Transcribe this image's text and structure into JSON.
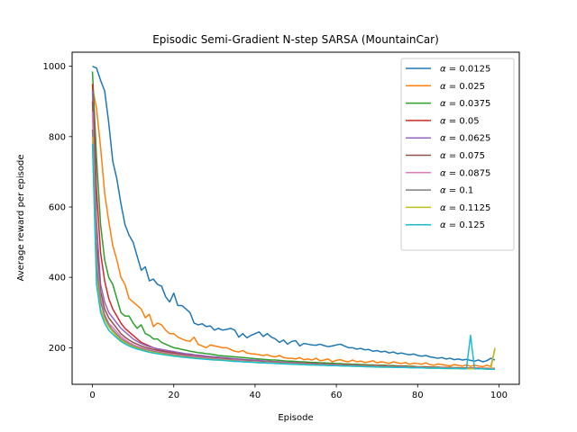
{
  "chart_data": {
    "type": "line",
    "title": "Episodic Semi-Gradient N-step SARSA (MountainCar)",
    "xlabel": "Episode",
    "ylabel": "Average reward per episode",
    "xlim": [
      -5,
      105
    ],
    "ylim": [
      96,
      1040
    ],
    "xticks": [
      0,
      20,
      40,
      60,
      80,
      100
    ],
    "yticks": [
      200,
      400,
      600,
      800,
      1000
    ],
    "grid": false,
    "legend_position": "upper right",
    "x": [
      0,
      1,
      2,
      3,
      4,
      5,
      6,
      7,
      8,
      9,
      10,
      11,
      12,
      13,
      14,
      15,
      16,
      17,
      18,
      19,
      20,
      21,
      22,
      23,
      24,
      25,
      26,
      27,
      28,
      29,
      30,
      31,
      32,
      33,
      34,
      35,
      36,
      37,
      38,
      39,
      40,
      41,
      42,
      43,
      44,
      45,
      46,
      47,
      48,
      49,
      50,
      51,
      52,
      53,
      54,
      55,
      56,
      57,
      58,
      59,
      60,
      61,
      62,
      63,
      64,
      65,
      66,
      67,
      68,
      69,
      70,
      71,
      72,
      73,
      74,
      75,
      76,
      77,
      78,
      79,
      80,
      81,
      82,
      83,
      84,
      85,
      86,
      87,
      88,
      89,
      90,
      91,
      92,
      93,
      94,
      95,
      96,
      97,
      98,
      99
    ],
    "series": [
      {
        "name": "α = 0.0125",
        "symbol": "α",
        "value": "0.0125",
        "color": "#1f77b4",
        "values": [
          1000,
          995,
          960,
          930,
          840,
          730,
          680,
          610,
          550,
          520,
          500,
          460,
          420,
          430,
          390,
          395,
          380,
          375,
          345,
          330,
          355,
          320,
          320,
          310,
          300,
          270,
          265,
          268,
          260,
          262,
          250,
          255,
          250,
          252,
          255,
          250,
          230,
          240,
          228,
          235,
          240,
          245,
          232,
          240,
          230,
          225,
          215,
          222,
          210,
          218,
          220,
          205,
          212,
          210,
          208,
          207,
          210,
          206,
          203,
          205,
          208,
          210,
          205,
          200,
          200,
          196,
          198,
          194,
          195,
          190,
          192,
          188,
          190,
          185,
          188,
          183,
          185,
          182,
          180,
          182,
          178,
          176,
          178,
          174,
          172,
          170,
          172,
          168,
          170,
          166,
          168,
          165,
          167,
          164,
          162,
          165,
          160,
          163,
          170,
          165
        ]
      },
      {
        "name": "α = 0.025",
        "symbol": "α",
        "value": "0.025",
        "color": "#ff7f0e",
        "values": [
          940,
          880,
          770,
          640,
          560,
          490,
          450,
          400,
          380,
          340,
          330,
          320,
          310,
          285,
          295,
          260,
          270,
          265,
          250,
          240,
          240,
          230,
          225,
          220,
          218,
          230,
          210,
          205,
          200,
          208,
          205,
          203,
          200,
          200,
          195,
          190,
          188,
          192,
          185,
          183,
          182,
          180,
          178,
          180,
          176,
          174,
          178,
          172,
          170,
          170,
          168,
          172,
          166,
          168,
          165,
          170,
          163,
          165,
          168,
          160,
          164,
          166,
          162,
          160,
          165,
          160,
          162,
          158,
          160,
          163,
          157,
          160,
          158,
          155,
          160,
          157,
          155,
          158,
          153,
          156,
          155,
          153,
          157,
          152,
          150,
          154,
          152,
          150,
          148,
          152,
          150,
          148,
          151,
          147,
          150,
          148,
          146,
          150,
          147,
          196
        ]
      },
      {
        "name": "α = 0.0375",
        "symbol": "α",
        "value": "0.0375",
        "color": "#2ca02c",
        "values": [
          985,
          740,
          550,
          450,
          400,
          380,
          340,
          300,
          290,
          290,
          270,
          255,
          265,
          240,
          235,
          225,
          225,
          215,
          210,
          205,
          200,
          198,
          195,
          193,
          190,
          188,
          186,
          185,
          183,
          182,
          180,
          178,
          177,
          176,
          175,
          174,
          173,
          172,
          171,
          170,
          169,
          168,
          167,
          166,
          165,
          165,
          164,
          163,
          162,
          162,
          161,
          160,
          160,
          159,
          158,
          158,
          157,
          157,
          156,
          156,
          155,
          155,
          154,
          154,
          153,
          153,
          152,
          152,
          151,
          151,
          150,
          150,
          150,
          149,
          149,
          148,
          148,
          148,
          147,
          147,
          146,
          146,
          146,
          145,
          145,
          145,
          144,
          144,
          144,
          143,
          143,
          143,
          142,
          142,
          142,
          141,
          141,
          141,
          140,
          140
        ]
      },
      {
        "name": "α = 0.05",
        "symbol": "α",
        "value": "0.05",
        "color": "#d62728",
        "values": [
          950,
          650,
          470,
          390,
          340,
          310,
          290,
          270,
          255,
          245,
          235,
          225,
          215,
          210,
          205,
          200,
          195,
          192,
          190,
          188,
          186,
          184,
          182,
          180,
          179,
          178,
          177,
          176,
          175,
          174,
          173,
          172,
          171,
          170,
          169,
          168,
          167,
          166,
          165,
          165,
          164,
          163,
          162,
          162,
          161,
          160,
          160,
          159,
          158,
          158,
          157,
          157,
          156,
          156,
          155,
          155,
          154,
          154,
          153,
          153,
          152,
          152,
          152,
          151,
          151,
          150,
          150,
          150,
          149,
          149,
          149,
          148,
          148,
          148,
          147,
          147,
          147,
          146,
          146,
          146,
          145,
          145,
          145,
          145,
          144,
          144,
          144,
          144,
          143,
          143,
          143,
          143,
          142,
          142,
          142,
          142,
          141,
          141,
          141,
          141
        ]
      },
      {
        "name": "α = 0.0625",
        "symbol": "α",
        "value": "0.0625",
        "color": "#9467bd",
        "values": [
          930,
          560,
          380,
          330,
          300,
          285,
          270,
          255,
          245,
          235,
          225,
          218,
          212,
          207,
          203,
          200,
          197,
          195,
          193,
          191,
          189,
          187,
          185,
          183,
          182,
          180,
          179,
          178,
          176,
          175,
          174,
          173,
          172,
          171,
          170,
          169,
          168,
          167,
          166,
          165,
          165,
          164,
          163,
          162,
          161,
          160,
          160,
          159,
          158,
          158,
          157,
          156,
          156,
          155,
          155,
          154,
          154,
          153,
          153,
          152,
          152,
          151,
          151,
          150,
          150,
          150,
          149,
          149,
          148,
          148,
          148,
          147,
          147,
          147,
          146,
          146,
          146,
          145,
          145,
          145,
          145,
          144,
          144,
          144,
          143,
          143,
          143,
          143,
          142,
          142,
          142,
          142,
          141,
          141,
          141,
          141,
          140,
          140,
          140,
          140
        ]
      },
      {
        "name": "α = 0.075",
        "symbol": "α",
        "value": "0.075",
        "color": "#8c564b",
        "values": [
          900,
          500,
          360,
          310,
          285,
          270,
          255,
          240,
          230,
          222,
          215,
          210,
          205,
          201,
          198,
          195,
          192,
          190,
          188,
          186,
          184,
          182,
          181,
          179,
          178,
          177,
          175,
          174,
          173,
          172,
          171,
          170,
          169,
          168,
          167,
          166,
          165,
          165,
          164,
          163,
          162,
          161,
          161,
          160,
          159,
          159,
          158,
          157,
          157,
          156,
          156,
          155,
          155,
          154,
          154,
          153,
          153,
          152,
          152,
          151,
          151,
          151,
          150,
          150,
          149,
          149,
          149,
          148,
          148,
          148,
          147,
          147,
          147,
          146,
          146,
          146,
          145,
          145,
          145,
          145,
          144,
          144,
          144,
          144,
          143,
          143,
          143,
          143,
          142,
          142,
          142,
          142,
          142,
          141,
          141,
          141,
          141,
          140,
          140,
          140
        ]
      },
      {
        "name": "α = 0.0875",
        "symbol": "α",
        "value": "0.0875",
        "color": "#e377c2",
        "values": [
          870,
          460,
          340,
          295,
          270,
          258,
          245,
          232,
          223,
          215,
          209,
          204,
          200,
          197,
          194,
          191,
          189,
          187,
          185,
          183,
          181,
          180,
          178,
          177,
          176,
          175,
          173,
          172,
          171,
          170,
          169,
          168,
          167,
          166,
          165,
          165,
          164,
          163,
          162,
          161,
          161,
          160,
          159,
          159,
          158,
          157,
          157,
          156,
          156,
          155,
          155,
          154,
          154,
          153,
          153,
          152,
          152,
          151,
          151,
          151,
          150,
          150,
          149,
          149,
          149,
          148,
          148,
          148,
          147,
          147,
          147,
          146,
          146,
          146,
          145,
          145,
          145,
          145,
          144,
          144,
          144,
          144,
          143,
          143,
          143,
          143,
          142,
          142,
          142,
          142,
          141,
          141,
          141,
          141,
          141,
          140,
          140,
          140,
          140,
          140
        ]
      },
      {
        "name": "α = 0.1",
        "symbol": "α",
        "value": "0.1",
        "color": "#7f7f7f",
        "values": [
          820,
          430,
          330,
          290,
          265,
          250,
          238,
          226,
          218,
          211,
          205,
          201,
          197,
          194,
          191,
          189,
          187,
          185,
          183,
          181,
          179,
          178,
          176,
          175,
          174,
          172,
          171,
          170,
          169,
          168,
          167,
          166,
          165,
          165,
          164,
          163,
          162,
          161,
          161,
          160,
          159,
          159,
          158,
          157,
          157,
          156,
          156,
          155,
          155,
          154,
          154,
          153,
          153,
          152,
          152,
          151,
          151,
          151,
          150,
          150,
          149,
          149,
          149,
          148,
          148,
          148,
          147,
          147,
          147,
          146,
          146,
          146,
          145,
          145,
          145,
          145,
          144,
          144,
          144,
          144,
          143,
          143,
          143,
          143,
          142,
          142,
          142,
          142,
          141,
          141,
          141,
          141,
          141,
          140,
          140,
          140,
          140,
          140,
          139,
          139
        ]
      },
      {
        "name": "α = 0.1125",
        "symbol": "α",
        "value": "0.1125",
        "color": "#bcbd22",
        "values": [
          800,
          400,
          310,
          280,
          260,
          245,
          233,
          222,
          215,
          208,
          203,
          199,
          195,
          192,
          189,
          187,
          185,
          183,
          181,
          179,
          178,
          176,
          175,
          173,
          172,
          171,
          170,
          169,
          168,
          167,
          166,
          165,
          165,
          164,
          163,
          162,
          161,
          161,
          160,
          159,
          159,
          158,
          157,
          157,
          156,
          156,
          155,
          155,
          154,
          154,
          153,
          153,
          152,
          152,
          151,
          151,
          151,
          150,
          150,
          149,
          149,
          149,
          148,
          148,
          148,
          147,
          147,
          147,
          146,
          146,
          146,
          145,
          145,
          145,
          145,
          144,
          144,
          144,
          144,
          143,
          143,
          143,
          143,
          142,
          142,
          142,
          142,
          141,
          141,
          141,
          141,
          141,
          140,
          140,
          140,
          140,
          140,
          139,
          139,
          200
        ]
      },
      {
        "name": "α = 0.125",
        "symbol": "α",
        "value": "0.125",
        "color": "#17becf",
        "values": [
          780,
          380,
          300,
          270,
          250,
          238,
          228,
          218,
          211,
          205,
          200,
          196,
          193,
          190,
          187,
          185,
          183,
          181,
          179,
          178,
          176,
          175,
          173,
          172,
          171,
          170,
          169,
          168,
          167,
          166,
          165,
          165,
          164,
          163,
          162,
          161,
          161,
          160,
          159,
          159,
          158,
          157,
          157,
          156,
          156,
          155,
          155,
          154,
          154,
          153,
          153,
          152,
          152,
          151,
          151,
          151,
          150,
          150,
          149,
          149,
          149,
          148,
          148,
          148,
          147,
          147,
          147,
          146,
          146,
          146,
          145,
          145,
          145,
          145,
          144,
          144,
          144,
          144,
          143,
          143,
          143,
          143,
          142,
          142,
          142,
          142,
          141,
          141,
          141,
          141,
          141,
          140,
          140,
          235,
          140,
          140,
          140,
          139,
          139,
          139
        ]
      }
    ]
  }
}
